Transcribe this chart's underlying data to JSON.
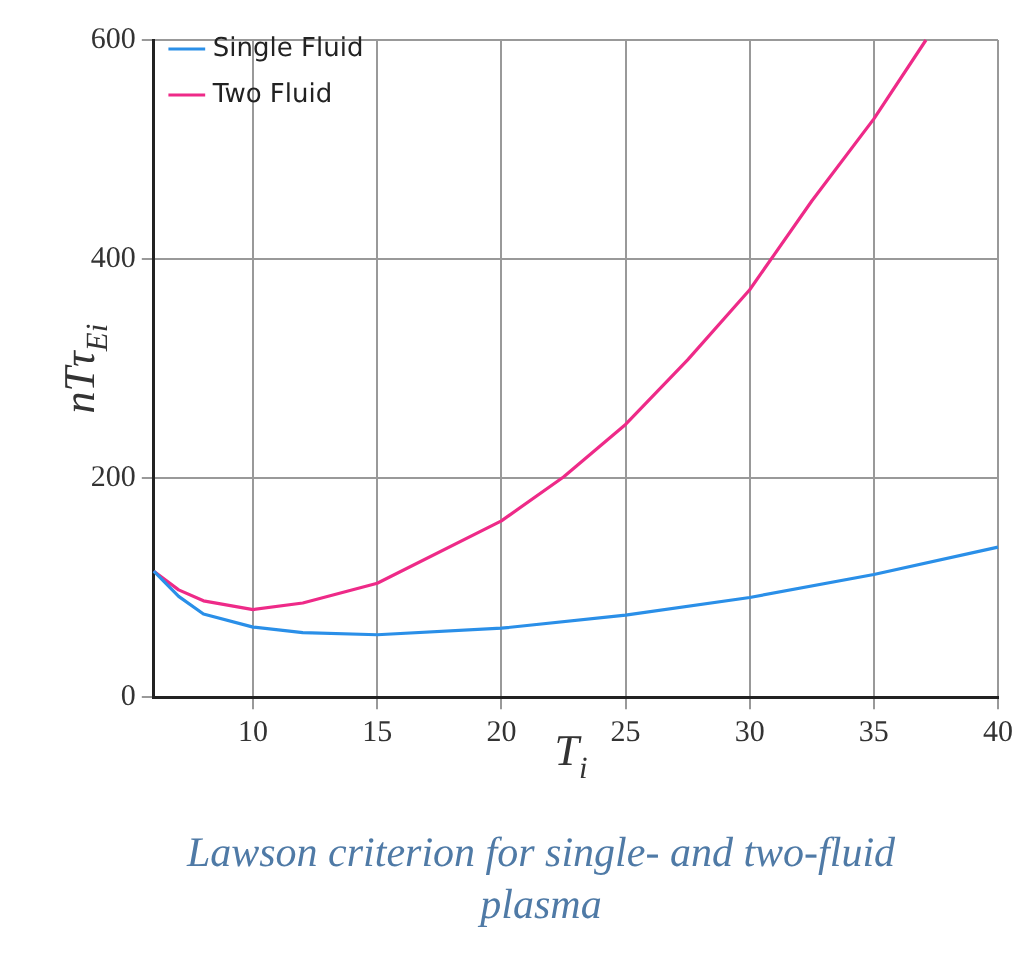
{
  "chart_data": {
    "type": "line",
    "xlabel": "T$_{i}$",
    "ylabel": "nTτ$_{Ei}$",
    "annotations": [
      "Lawson criterion for single- and two-fluid plasma"
    ],
    "xlim": [
      6,
      40
    ],
    "xticks": [
      10,
      15,
      20,
      25,
      30,
      35,
      40
    ],
    "ylim": [
      0,
      600
    ],
    "yticks": [
      0,
      200,
      400,
      600
    ],
    "grid": true,
    "legend": "top left",
    "marker": "none",
    "line_style": "solid",
    "series": [
      {
        "name": "Single Fluid",
        "color": "#2a8fe8",
        "x": [
          6,
          7,
          8,
          10,
          12,
          15,
          20,
          25,
          30,
          35,
          40
        ],
        "values": [
          115,
          92,
          76,
          64,
          59,
          57,
          63,
          75,
          91,
          112,
          137
        ]
      },
      {
        "name": "Two Fluid",
        "color": "#ee2a88",
        "x": [
          6,
          7,
          8,
          10,
          12,
          15,
          20,
          22.5,
          25,
          27.5,
          30,
          32.5,
          35,
          37.1
        ],
        "values": [
          115,
          98,
          88,
          80,
          86,
          104,
          161,
          201,
          249,
          308,
          372,
          453,
          528,
          600
        ]
      }
    ]
  }
}
